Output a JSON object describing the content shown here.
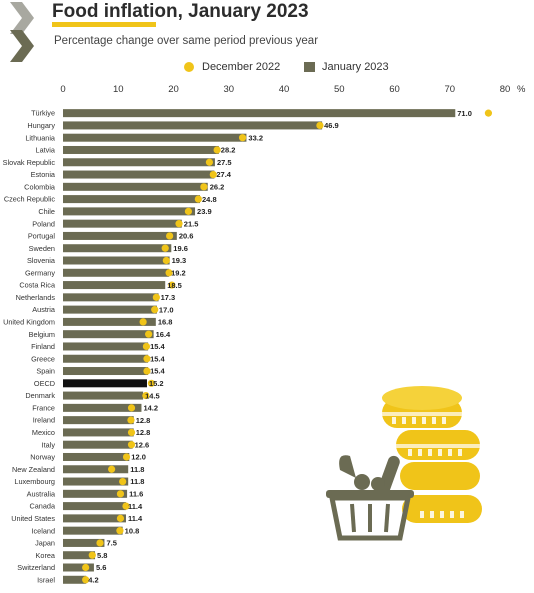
{
  "chart_data": {
    "type": "bar",
    "title": "Food inflation, January 2023",
    "subtitle": "Percentage change over same period previous year",
    "x_ticks": [
      0,
      10,
      20,
      30,
      40,
      50,
      60,
      70,
      80
    ],
    "x_unit": "%",
    "xlim": [
      0,
      80
    ],
    "legend_placement": "top",
    "colors": {
      "january_2023": "#6b6b53",
      "december_2022": "#f0c419",
      "highlight": "#111111"
    },
    "series": [
      {
        "name": "December 2022",
        "kind": "dot",
        "values": [
          77.0,
          46.5,
          32.5,
          27.9,
          26.5,
          27.2,
          25.5,
          24.5,
          22.7,
          21.0,
          19.3,
          18.5,
          18.7,
          19.2,
          19.7,
          16.9,
          16.6,
          14.5,
          15.5,
          15.1,
          15.2,
          15.2,
          16.0,
          15.0,
          12.4,
          12.3,
          12.4,
          12.4,
          11.5,
          8.8,
          10.8,
          10.4,
          11.4,
          10.4,
          10.3,
          6.7,
          5.3,
          4.1,
          4.1
        ]
      },
      {
        "name": "January 2023",
        "kind": "bar",
        "values": [
          71.0,
          46.9,
          33.2,
          28.2,
          27.5,
          27.4,
          26.2,
          24.8,
          23.9,
          21.5,
          20.6,
          19.6,
          19.3,
          19.2,
          18.5,
          17.3,
          17.0,
          16.8,
          16.4,
          15.4,
          15.4,
          15.4,
          15.2,
          14.5,
          14.2,
          12.8,
          12.8,
          12.6,
          12.0,
          11.8,
          11.8,
          11.6,
          11.4,
          11.4,
          10.8,
          7.5,
          5.8,
          5.6,
          4.2
        ]
      }
    ],
    "categories": [
      "Türkiye",
      "Hungary",
      "Lithuania",
      "Latvia",
      "Slovak Republic",
      "Estonia",
      "Colombia",
      "Czech Republic",
      "Chile",
      "Poland",
      "Portugal",
      "Sweden",
      "Slovenia",
      "Germany",
      "Costa Rica",
      "Netherlands",
      "Austria",
      "United Kingdom",
      "Belgium",
      "Finland",
      "Greece",
      "Spain",
      "OECD",
      "Denmark",
      "France",
      "Ireland",
      "Mexico",
      "Italy",
      "Norway",
      "New Zealand",
      "Luxembourg",
      "Australia",
      "Canada",
      "United States",
      "Iceland",
      "Japan",
      "Korea",
      "Switzerland",
      "Israel"
    ],
    "value_labels": [
      "71.0",
      "46.9",
      "33.2",
      "28.2",
      "27.5",
      "27.4",
      "26.2",
      "24.8",
      "23.9",
      "21.5",
      "20.6",
      "19.6",
      "19.3",
      "19.2",
      "18.5",
      "17.3",
      "17.0",
      "16.8",
      "16.4",
      "15.4",
      "15.4",
      "15.4",
      "15.2",
      "14.5",
      "14.2",
      "12.8",
      "12.8",
      "12.6",
      "12.0",
      "11.8",
      "11.8",
      "11.6",
      "11.4",
      "11.4",
      "10.8",
      "7.5",
      "5.8",
      "5.6",
      "4.2"
    ],
    "highlight_category": "OECD"
  },
  "decorations": {
    "logo_icon": "oecd-chevron-logo-icon",
    "illustration_icon": "coins-and-food-basket-icon"
  }
}
